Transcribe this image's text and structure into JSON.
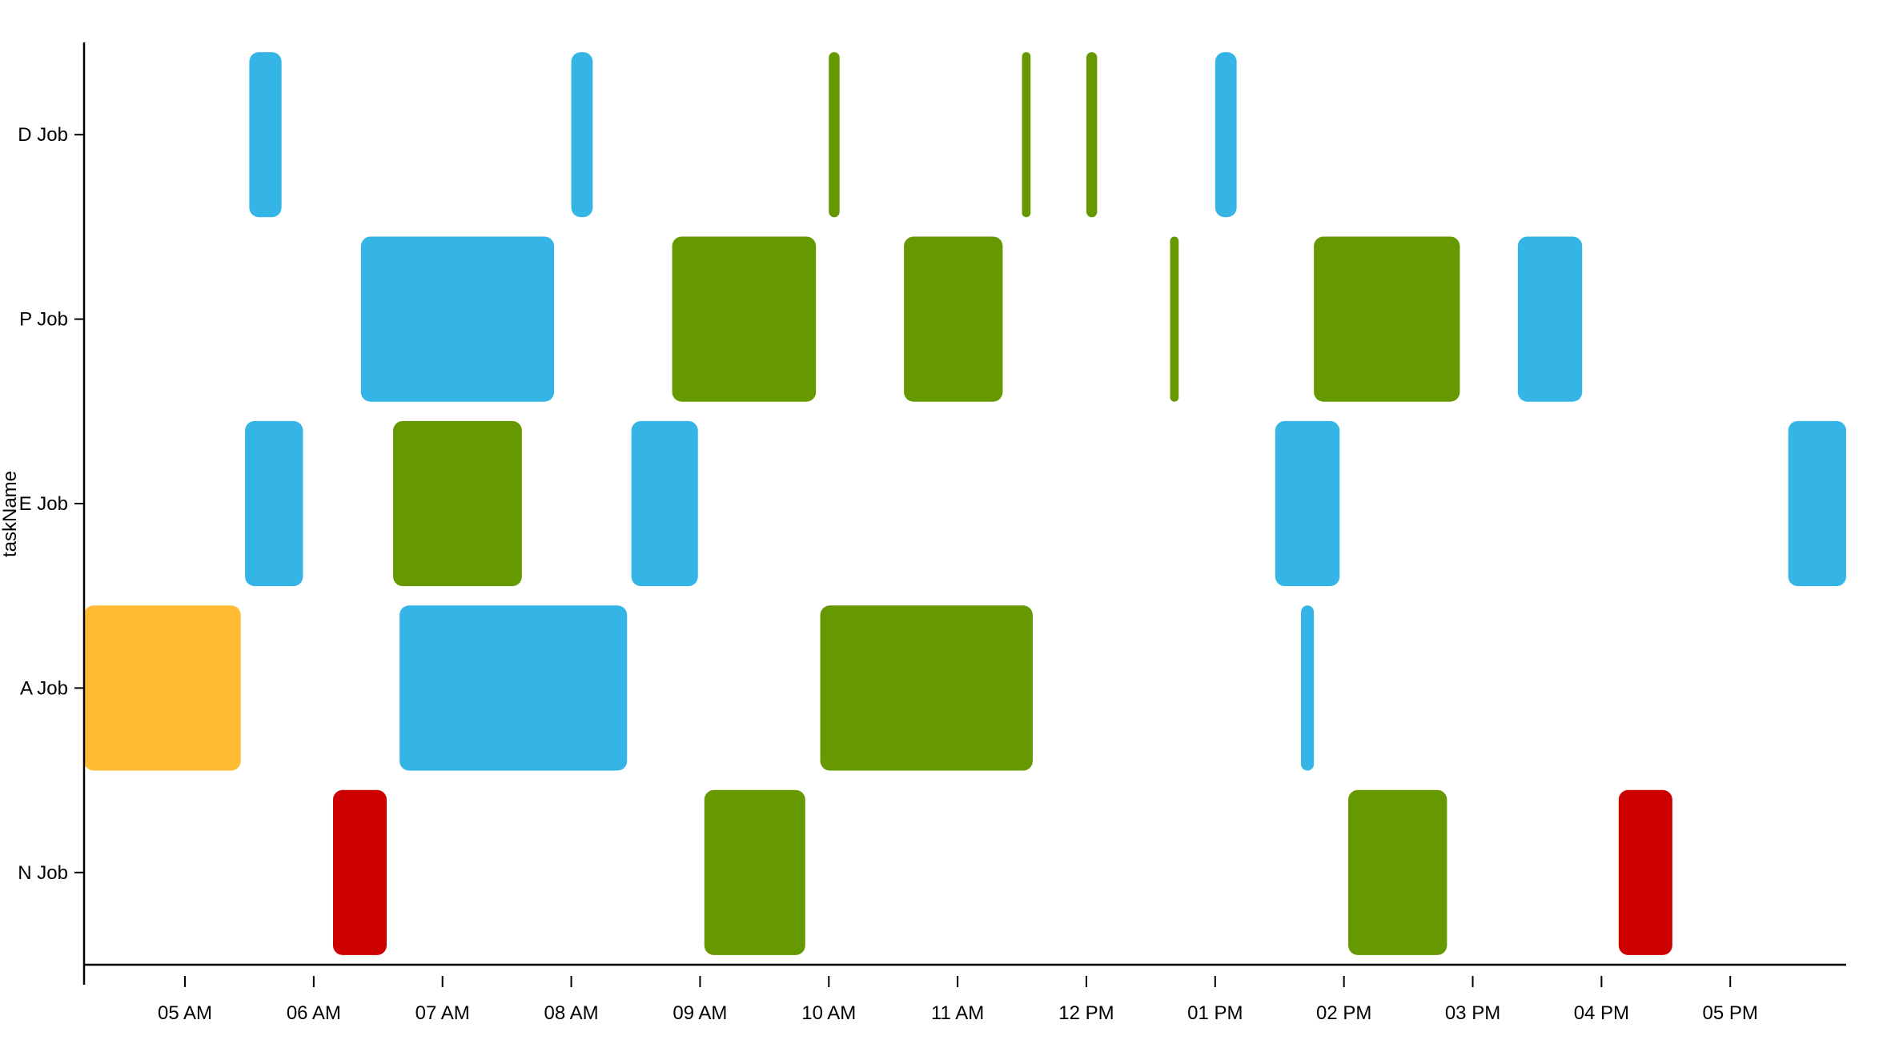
{
  "chart_data": {
    "type": "gantt",
    "ylabel": "taskName",
    "xlabel": "",
    "x_domain": [
      "04:13",
      "17:54"
    ],
    "x_ticks": [
      {
        "t": "05:00",
        "label": "05 AM"
      },
      {
        "t": "06:00",
        "label": "06 AM"
      },
      {
        "t": "07:00",
        "label": "07 AM"
      },
      {
        "t": "08:00",
        "label": "08 AM"
      },
      {
        "t": "09:00",
        "label": "09 AM"
      },
      {
        "t": "10:00",
        "label": "10 AM"
      },
      {
        "t": "11:00",
        "label": "11 AM"
      },
      {
        "t": "12:00",
        "label": "12 PM"
      },
      {
        "t": "13:00",
        "label": "01 PM"
      },
      {
        "t": "14:00",
        "label": "02 PM"
      },
      {
        "t": "15:00",
        "label": "03 PM"
      },
      {
        "t": "16:00",
        "label": "04 PM"
      },
      {
        "t": "17:00",
        "label": "05 PM"
      }
    ],
    "categories": [
      "D Job",
      "P Job",
      "E Job",
      "A Job",
      "N Job"
    ],
    "colors": {
      "blue": "#35B5E5",
      "green": "#669900",
      "orange": "#FFBB33",
      "red": "#CC0000"
    },
    "tasks": [
      {
        "task": "D Job",
        "start": "05:30",
        "end": "05:45",
        "color": "blue"
      },
      {
        "task": "D Job",
        "start": "08:00",
        "end": "08:10",
        "color": "blue"
      },
      {
        "task": "D Job",
        "start": "10:00",
        "end": "10:05",
        "color": "green"
      },
      {
        "task": "D Job",
        "start": "11:30",
        "end": "11:34",
        "color": "green"
      },
      {
        "task": "D Job",
        "start": "12:00",
        "end": "12:05",
        "color": "green"
      },
      {
        "task": "D Job",
        "start": "13:00",
        "end": "13:10",
        "color": "blue"
      },
      {
        "task": "P Job",
        "start": "06:22",
        "end": "07:52",
        "color": "blue"
      },
      {
        "task": "P Job",
        "start": "08:47",
        "end": "09:54",
        "color": "green"
      },
      {
        "task": "P Job",
        "start": "10:35",
        "end": "11:21",
        "color": "green"
      },
      {
        "task": "P Job",
        "start": "12:39",
        "end": "12:43",
        "color": "green"
      },
      {
        "task": "P Job",
        "start": "13:46",
        "end": "14:54",
        "color": "green"
      },
      {
        "task": "P Job",
        "start": "15:21",
        "end": "15:51",
        "color": "blue"
      },
      {
        "task": "E Job",
        "start": "05:28",
        "end": "05:55",
        "color": "blue"
      },
      {
        "task": "E Job",
        "start": "06:37",
        "end": "07:37",
        "color": "green"
      },
      {
        "task": "E Job",
        "start": "08:28",
        "end": "08:59",
        "color": "blue"
      },
      {
        "task": "E Job",
        "start": "13:28",
        "end": "13:58",
        "color": "blue"
      },
      {
        "task": "E Job",
        "start": "17:27",
        "end": "17:54",
        "color": "blue"
      },
      {
        "task": "A Job",
        "start": "04:13",
        "end": "05:26",
        "color": "orange"
      },
      {
        "task": "A Job",
        "start": "06:40",
        "end": "08:26",
        "color": "blue"
      },
      {
        "task": "A Job",
        "start": "09:56",
        "end": "11:35",
        "color": "green"
      },
      {
        "task": "A Job",
        "start": "13:40",
        "end": "13:46",
        "color": "blue"
      },
      {
        "task": "N Job",
        "start": "06:09",
        "end": "06:34",
        "color": "red"
      },
      {
        "task": "N Job",
        "start": "09:02",
        "end": "09:49",
        "color": "green"
      },
      {
        "task": "N Job",
        "start": "14:02",
        "end": "14:48",
        "color": "green"
      },
      {
        "task": "N Job",
        "start": "16:08",
        "end": "16:33",
        "color": "red"
      }
    ]
  }
}
